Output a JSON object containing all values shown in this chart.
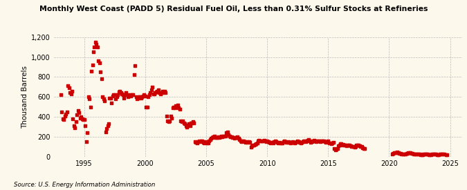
{
  "title": "Monthly West Coast (PADD 5) Residual Fuel Oil, Less than 0.31% Sulfur Stocks at Refineries",
  "ylabel": "Thousand Barrels",
  "source": "Source: U.S. Energy Information Administration",
  "background_color": "#fdf8ec",
  "marker_color": "#cc0000",
  "ylim": [
    0,
    1200
  ],
  "yticks": [
    0,
    200,
    400,
    600,
    800,
    1000,
    1200
  ],
  "ytick_labels": [
    "0",
    "200",
    "400",
    "600",
    "800",
    "1,000",
    "1,200"
  ],
  "xlim_start": 1992.5,
  "xlim_end": 2026.0,
  "xticks": [
    1995,
    2000,
    2005,
    2010,
    2015,
    2020,
    2025
  ],
  "data": [
    [
      1993.08,
      620
    ],
    [
      1993.17,
      450
    ],
    [
      1993.25,
      380
    ],
    [
      1993.33,
      370
    ],
    [
      1993.42,
      410
    ],
    [
      1993.5,
      430
    ],
    [
      1993.58,
      450
    ],
    [
      1993.67,
      710
    ],
    [
      1993.75,
      690
    ],
    [
      1993.83,
      640
    ],
    [
      1993.92,
      630
    ],
    [
      1994.0,
      660
    ],
    [
      1994.08,
      380
    ],
    [
      1994.17,
      310
    ],
    [
      1994.25,
      290
    ],
    [
      1994.33,
      350
    ],
    [
      1994.42,
      420
    ],
    [
      1994.5,
      460
    ],
    [
      1994.58,
      440
    ],
    [
      1994.67,
      390
    ],
    [
      1994.75,
      400
    ],
    [
      1994.83,
      380
    ],
    [
      1994.92,
      370
    ],
    [
      1995.0,
      370
    ],
    [
      1995.08,
      310
    ],
    [
      1995.17,
      150
    ],
    [
      1995.25,
      240
    ],
    [
      1995.33,
      600
    ],
    [
      1995.42,
      580
    ],
    [
      1995.5,
      500
    ],
    [
      1995.58,
      860
    ],
    [
      1995.67,
      920
    ],
    [
      1995.75,
      1050
    ],
    [
      1995.83,
      1100
    ],
    [
      1995.92,
      1150
    ],
    [
      1996.0,
      1130
    ],
    [
      1996.08,
      1100
    ],
    [
      1996.17,
      960
    ],
    [
      1996.25,
      940
    ],
    [
      1996.33,
      850
    ],
    [
      1996.42,
      780
    ],
    [
      1996.5,
      600
    ],
    [
      1996.58,
      580
    ],
    [
      1996.67,
      560
    ],
    [
      1996.75,
      250
    ],
    [
      1996.83,
      280
    ],
    [
      1996.92,
      310
    ],
    [
      1997.0,
      330
    ],
    [
      1997.08,
      590
    ],
    [
      1997.17,
      590
    ],
    [
      1997.25,
      540
    ],
    [
      1997.33,
      610
    ],
    [
      1997.42,
      620
    ],
    [
      1997.5,
      620
    ],
    [
      1997.58,
      580
    ],
    [
      1997.67,
      600
    ],
    [
      1997.75,
      620
    ],
    [
      1997.83,
      650
    ],
    [
      1997.92,
      660
    ],
    [
      1998.0,
      640
    ],
    [
      1998.08,
      630
    ],
    [
      1998.17,
      620
    ],
    [
      1998.25,
      590
    ],
    [
      1998.33,
      620
    ],
    [
      1998.42,
      640
    ],
    [
      1998.5,
      620
    ],
    [
      1998.58,
      600
    ],
    [
      1998.67,
      610
    ],
    [
      1998.75,
      620
    ],
    [
      1998.83,
      610
    ],
    [
      1998.92,
      620
    ],
    [
      1999.0,
      620
    ],
    [
      1999.08,
      820
    ],
    [
      1999.17,
      910
    ],
    [
      1999.25,
      600
    ],
    [
      1999.33,
      580
    ],
    [
      1999.42,
      590
    ],
    [
      1999.5,
      600
    ],
    [
      1999.58,
      600
    ],
    [
      1999.67,
      590
    ],
    [
      1999.75,
      600
    ],
    [
      1999.83,
      610
    ],
    [
      1999.92,
      620
    ],
    [
      2000.0,
      610
    ],
    [
      2000.08,
      500
    ],
    [
      2000.17,
      500
    ],
    [
      2000.25,
      600
    ],
    [
      2000.33,
      620
    ],
    [
      2000.42,
      640
    ],
    [
      2000.5,
      670
    ],
    [
      2000.58,
      700
    ],
    [
      2000.67,
      630
    ],
    [
      2000.75,
      630
    ],
    [
      2000.83,
      640
    ],
    [
      2000.92,
      650
    ],
    [
      2001.0,
      660
    ],
    [
      2001.08,
      670
    ],
    [
      2001.17,
      640
    ],
    [
      2001.25,
      630
    ],
    [
      2001.33,
      640
    ],
    [
      2001.42,
      660
    ],
    [
      2001.5,
      640
    ],
    [
      2001.58,
      660
    ],
    [
      2001.67,
      640
    ],
    [
      2001.75,
      410
    ],
    [
      2001.83,
      360
    ],
    [
      2001.92,
      350
    ],
    [
      2002.0,
      360
    ],
    [
      2002.08,
      410
    ],
    [
      2002.17,
      390
    ],
    [
      2002.25,
      490
    ],
    [
      2002.33,
      500
    ],
    [
      2002.42,
      490
    ],
    [
      2002.5,
      510
    ],
    [
      2002.58,
      500
    ],
    [
      2002.67,
      520
    ],
    [
      2002.75,
      490
    ],
    [
      2002.83,
      480
    ],
    [
      2002.92,
      360
    ],
    [
      2003.0,
      350
    ],
    [
      2003.08,
      360
    ],
    [
      2003.17,
      340
    ],
    [
      2003.25,
      330
    ],
    [
      2003.33,
      310
    ],
    [
      2003.42,
      300
    ],
    [
      2003.5,
      320
    ],
    [
      2003.58,
      330
    ],
    [
      2003.67,
      310
    ],
    [
      2003.75,
      340
    ],
    [
      2003.83,
      340
    ],
    [
      2003.92,
      350
    ],
    [
      2004.0,
      340
    ],
    [
      2004.08,
      150
    ],
    [
      2004.17,
      145
    ],
    [
      2004.25,
      140
    ],
    [
      2004.33,
      150
    ],
    [
      2004.42,
      155
    ],
    [
      2004.5,
      150
    ],
    [
      2004.58,
      155
    ],
    [
      2004.67,
      160
    ],
    [
      2004.75,
      145
    ],
    [
      2004.83,
      140
    ],
    [
      2004.92,
      150
    ],
    [
      2005.0,
      145
    ],
    [
      2005.08,
      140
    ],
    [
      2005.17,
      135
    ],
    [
      2005.25,
      155
    ],
    [
      2005.33,
      175
    ],
    [
      2005.42,
      185
    ],
    [
      2005.5,
      195
    ],
    [
      2005.58,
      200
    ],
    [
      2005.67,
      210
    ],
    [
      2005.75,
      195
    ],
    [
      2005.83,
      190
    ],
    [
      2005.92,
      195
    ],
    [
      2006.0,
      200
    ],
    [
      2006.08,
      195
    ],
    [
      2006.17,
      200
    ],
    [
      2006.25,
      210
    ],
    [
      2006.33,
      200
    ],
    [
      2006.42,
      205
    ],
    [
      2006.5,
      210
    ],
    [
      2006.58,
      210
    ],
    [
      2006.67,
      240
    ],
    [
      2006.75,
      250
    ],
    [
      2006.83,
      220
    ],
    [
      2006.92,
      210
    ],
    [
      2007.0,
      200
    ],
    [
      2007.08,
      200
    ],
    [
      2007.17,
      195
    ],
    [
      2007.25,
      195
    ],
    [
      2007.33,
      185
    ],
    [
      2007.42,
      190
    ],
    [
      2007.5,
      195
    ],
    [
      2007.58,
      200
    ],
    [
      2007.67,
      185
    ],
    [
      2007.75,
      175
    ],
    [
      2007.83,
      155
    ],
    [
      2007.92,
      150
    ],
    [
      2008.0,
      155
    ],
    [
      2008.08,
      155
    ],
    [
      2008.17,
      150
    ],
    [
      2008.25,
      145
    ],
    [
      2008.33,
      150
    ],
    [
      2008.42,
      145
    ],
    [
      2008.5,
      150
    ],
    [
      2008.58,
      145
    ],
    [
      2008.67,
      95
    ],
    [
      2008.75,
      110
    ],
    [
      2008.83,
      115
    ],
    [
      2008.92,
      120
    ],
    [
      2009.0,
      125
    ],
    [
      2009.08,
      130
    ],
    [
      2009.17,
      140
    ],
    [
      2009.25,
      155
    ],
    [
      2009.33,
      165
    ],
    [
      2009.42,
      160
    ],
    [
      2009.5,
      155
    ],
    [
      2009.58,
      155
    ],
    [
      2009.67,
      160
    ],
    [
      2009.75,
      165
    ],
    [
      2009.83,
      155
    ],
    [
      2009.92,
      150
    ],
    [
      2010.0,
      155
    ],
    [
      2010.08,
      150
    ],
    [
      2010.17,
      145
    ],
    [
      2010.25,
      140
    ],
    [
      2010.33,
      145
    ],
    [
      2010.42,
      145
    ],
    [
      2010.5,
      140
    ],
    [
      2010.58,
      150
    ],
    [
      2010.67,
      155
    ],
    [
      2010.75,
      150
    ],
    [
      2010.83,
      145
    ],
    [
      2010.92,
      140
    ],
    [
      2011.0,
      145
    ],
    [
      2011.08,
      140
    ],
    [
      2011.17,
      135
    ],
    [
      2011.25,
      140
    ],
    [
      2011.33,
      150
    ],
    [
      2011.42,
      155
    ],
    [
      2011.5,
      150
    ],
    [
      2011.58,
      145
    ],
    [
      2011.67,
      145
    ],
    [
      2011.75,
      150
    ],
    [
      2011.83,
      145
    ],
    [
      2011.92,
      140
    ],
    [
      2012.0,
      145
    ],
    [
      2012.08,
      150
    ],
    [
      2012.17,
      145
    ],
    [
      2012.25,
      140
    ],
    [
      2012.33,
      145
    ],
    [
      2012.42,
      150
    ],
    [
      2012.5,
      155
    ],
    [
      2012.58,
      150
    ],
    [
      2012.67,
      145
    ],
    [
      2012.75,
      140
    ],
    [
      2012.83,
      145
    ],
    [
      2012.92,
      150
    ],
    [
      2013.0,
      155
    ],
    [
      2013.08,
      155
    ],
    [
      2013.17,
      150
    ],
    [
      2013.25,
      160
    ],
    [
      2013.33,
      165
    ],
    [
      2013.42,
      170
    ],
    [
      2013.5,
      155
    ],
    [
      2013.58,
      145
    ],
    [
      2013.67,
      150
    ],
    [
      2013.75,
      160
    ],
    [
      2013.83,
      165
    ],
    [
      2013.92,
      155
    ],
    [
      2014.0,
      150
    ],
    [
      2014.08,
      155
    ],
    [
      2014.17,
      160
    ],
    [
      2014.25,
      155
    ],
    [
      2014.33,
      150
    ],
    [
      2014.42,
      155
    ],
    [
      2014.5,
      160
    ],
    [
      2014.58,
      155
    ],
    [
      2014.67,
      160
    ],
    [
      2014.75,
      150
    ],
    [
      2014.83,
      145
    ],
    [
      2014.92,
      150
    ],
    [
      2015.0,
      155
    ],
    [
      2015.08,
      140
    ],
    [
      2015.17,
      135
    ],
    [
      2015.25,
      130
    ],
    [
      2015.33,
      140
    ],
    [
      2015.42,
      145
    ],
    [
      2015.5,
      80
    ],
    [
      2015.58,
      70
    ],
    [
      2015.67,
      75
    ],
    [
      2015.75,
      80
    ],
    [
      2015.83,
      110
    ],
    [
      2015.92,
      120
    ],
    [
      2016.0,
      130
    ],
    [
      2016.08,
      130
    ],
    [
      2016.17,
      120
    ],
    [
      2016.25,
      125
    ],
    [
      2016.33,
      115
    ],
    [
      2016.42,
      120
    ],
    [
      2016.5,
      110
    ],
    [
      2016.58,
      115
    ],
    [
      2016.67,
      120
    ],
    [
      2016.75,
      115
    ],
    [
      2016.83,
      110
    ],
    [
      2016.92,
      105
    ],
    [
      2017.0,
      100
    ],
    [
      2017.08,
      100
    ],
    [
      2017.17,
      95
    ],
    [
      2017.25,
      105
    ],
    [
      2017.33,
      115
    ],
    [
      2017.42,
      120
    ],
    [
      2017.5,
      120
    ],
    [
      2017.58,
      110
    ],
    [
      2017.67,
      105
    ],
    [
      2017.75,
      100
    ],
    [
      2017.83,
      90
    ],
    [
      2017.92,
      85
    ],
    [
      2018.0,
      80
    ],
    [
      2020.25,
      30
    ],
    [
      2020.33,
      35
    ],
    [
      2020.42,
      38
    ],
    [
      2020.5,
      40
    ],
    [
      2020.58,
      42
    ],
    [
      2020.67,
      45
    ],
    [
      2020.75,
      40
    ],
    [
      2020.83,
      35
    ],
    [
      2020.92,
      32
    ],
    [
      2021.0,
      30
    ],
    [
      2021.08,
      28
    ],
    [
      2021.17,
      25
    ],
    [
      2021.25,
      28
    ],
    [
      2021.33,
      30
    ],
    [
      2021.42,
      32
    ],
    [
      2021.5,
      35
    ],
    [
      2021.58,
      38
    ],
    [
      2021.67,
      40
    ],
    [
      2021.75,
      38
    ],
    [
      2021.83,
      35
    ],
    [
      2021.92,
      32
    ],
    [
      2022.0,
      30
    ],
    [
      2022.08,
      28
    ],
    [
      2022.17,
      25
    ],
    [
      2022.25,
      28
    ],
    [
      2022.33,
      30
    ],
    [
      2022.42,
      28
    ],
    [
      2022.5,
      25
    ],
    [
      2022.58,
      22
    ],
    [
      2022.67,
      20
    ],
    [
      2022.75,
      22
    ],
    [
      2022.83,
      25
    ],
    [
      2022.92,
      28
    ],
    [
      2023.0,
      30
    ],
    [
      2023.08,
      28
    ],
    [
      2023.17,
      25
    ],
    [
      2023.25,
      22
    ],
    [
      2023.33,
      20
    ],
    [
      2023.42,
      22
    ],
    [
      2023.5,
      25
    ],
    [
      2023.58,
      28
    ],
    [
      2023.67,
      30
    ],
    [
      2023.75,
      28
    ],
    [
      2023.83,
      25
    ],
    [
      2023.92,
      22
    ],
    [
      2024.0,
      20
    ],
    [
      2024.08,
      22
    ],
    [
      2024.17,
      25
    ],
    [
      2024.25,
      28
    ],
    [
      2024.33,
      30
    ],
    [
      2024.42,
      28
    ],
    [
      2024.5,
      25
    ],
    [
      2024.67,
      22
    ],
    [
      2024.75,
      20
    ]
  ]
}
